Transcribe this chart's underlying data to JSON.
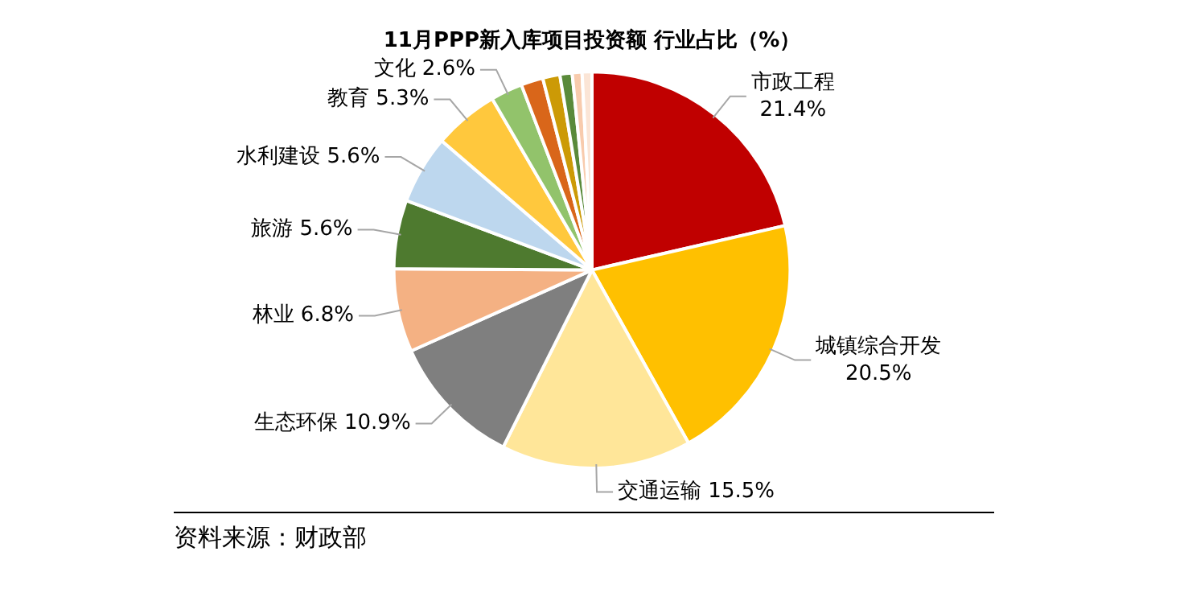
{
  "chart_data": {
    "type": "pie",
    "title": "11月PPP新入库项目投资额 行业占比（%）",
    "categories": [
      "市政工程",
      "城镇综合开发",
      "交通运输",
      "生态环保",
      "林业",
      "旅游",
      "水利建设",
      "教育",
      "文化",
      null,
      null,
      null,
      null,
      null
    ],
    "values": [
      21.4,
      20.5,
      15.5,
      10.9,
      6.8,
      5.6,
      5.6,
      5.3,
      2.6,
      1.8,
      1.4,
      1.0,
      0.8,
      0.8
    ],
    "value_labels": [
      "21.4%",
      "20.5%",
      "15.5%",
      "10.9%",
      "6.8%",
      "5.6%",
      "5.6%",
      "5.3%",
      "2.6%",
      null,
      null,
      null,
      null,
      null
    ],
    "colors": [
      "#c00000",
      "#ffc000",
      "#ffe699",
      "#7f7f7f",
      "#f4b183",
      "#4e7a2f",
      "#bdd7ee",
      "#ffc83d",
      "#92c36b",
      "#d9661a",
      "#cc9a06",
      "#5a8a3a",
      "#f8cbad",
      "#fbe5d6"
    ],
    "legend": false,
    "annotations": [
      "资料来源：财政部"
    ]
  }
}
